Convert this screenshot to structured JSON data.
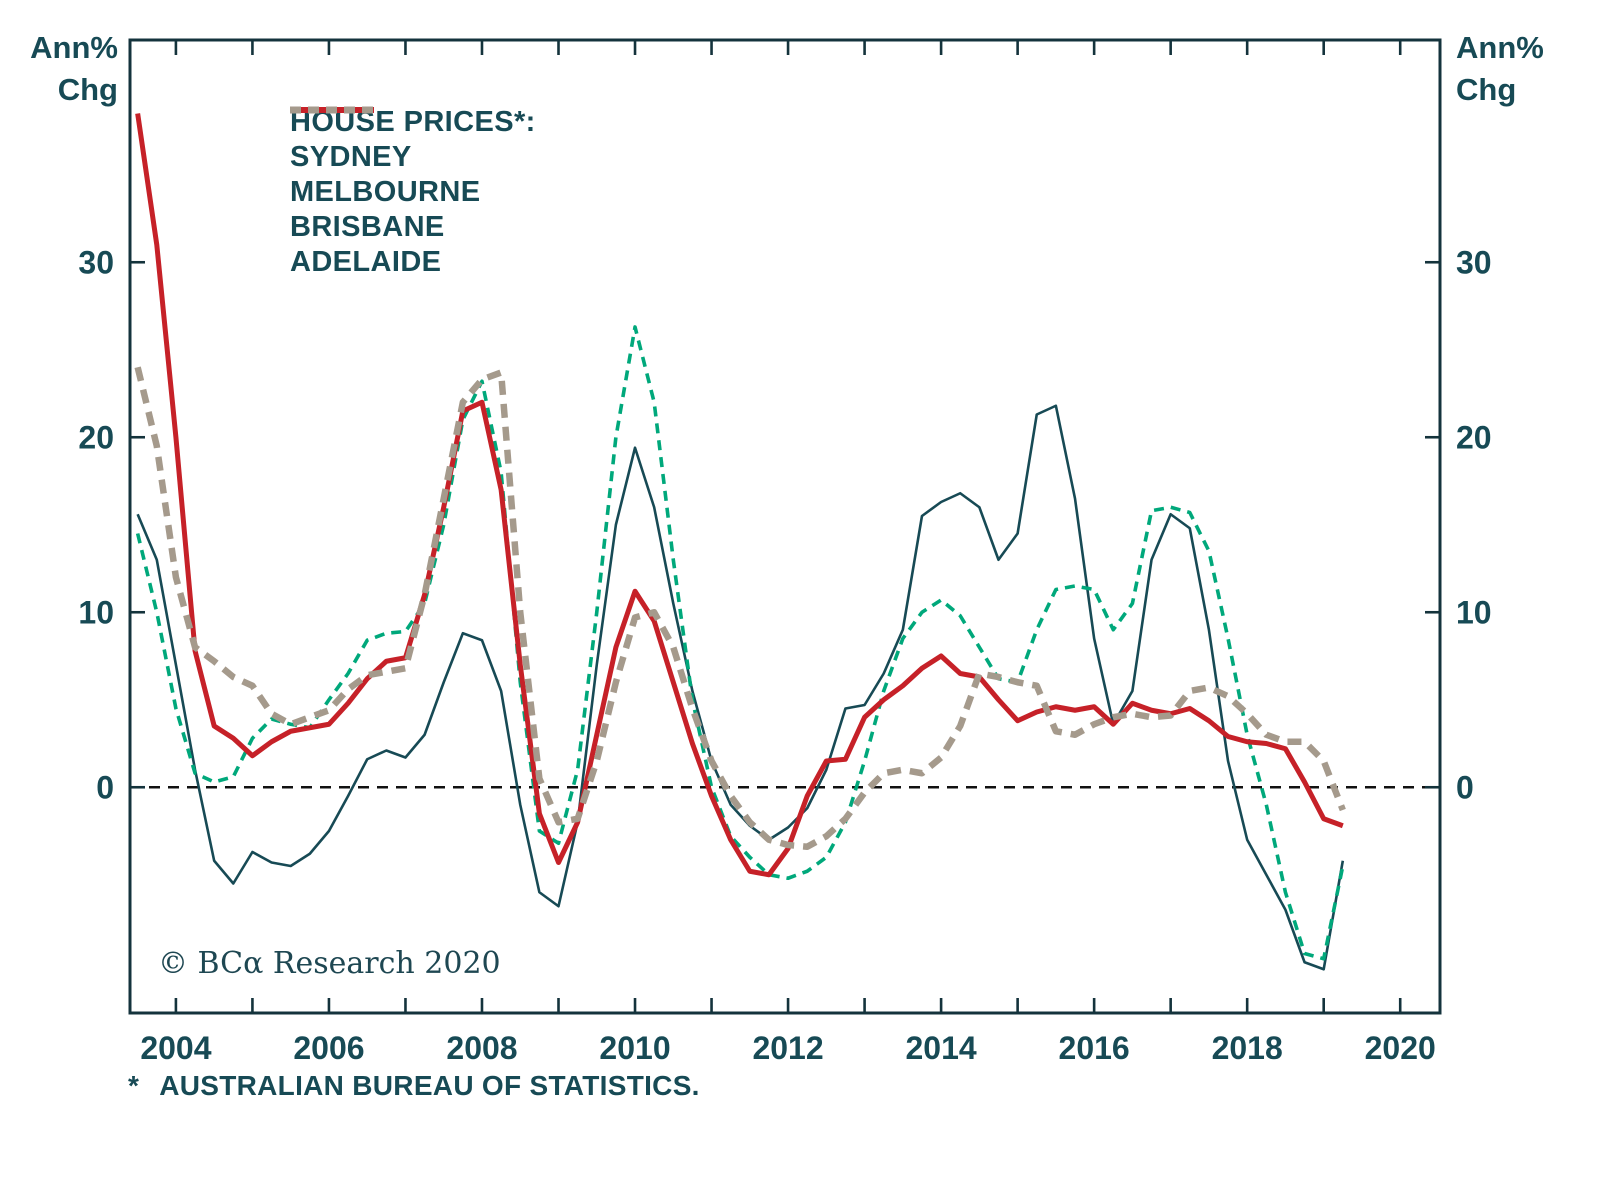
{
  "labels": {
    "ann_pct": "Ann%",
    "chg": "Chg"
  },
  "legend": {
    "title": "HOUSE PRICES*:"
  },
  "copyright": "© BCα Research 2020",
  "footnote": {
    "star": "*",
    "text": "AUSTRALIAN BUREAU OF STATISTICS."
  },
  "colors": {
    "text": "#174a55",
    "frame": "#14333c",
    "zero_line": "#111111"
  },
  "chart_data": {
    "type": "line",
    "title": "HOUSE PRICES*: annual % change, Australian capital cities",
    "x_start": 2003.5,
    "x_step": 0.25,
    "x_axis": {
      "min": 2003.4,
      "max": 2020.52,
      "tick_years": [
        2004,
        2005,
        2006,
        2007,
        2008,
        2009,
        2010,
        2011,
        2012,
        2013,
        2014,
        2015,
        2016,
        2017,
        2018,
        2019,
        2020
      ],
      "label_years": [
        2004,
        2006,
        2008,
        2010,
        2012,
        2014,
        2016,
        2018,
        2020
      ]
    },
    "y_axis": {
      "min": -12.9,
      "max": 42.7,
      "ticks": [
        0,
        10,
        20,
        30
      ],
      "label": "Ann% Chg"
    },
    "zero_line": true,
    "grid": false,
    "legend_position": "top-left-inside",
    "series": [
      {
        "name": "SYDNEY",
        "color": "#174a55",
        "width": 2.6,
        "dash": null,
        "values": [
          15.6,
          13.0,
          7.0,
          1.0,
          -4.2,
          -5.5,
          -3.7,
          -4.3,
          -4.5,
          -3.8,
          -2.5,
          -0.5,
          1.6,
          2.1,
          1.7,
          3.0,
          6.0,
          8.8,
          8.4,
          5.5,
          -1.0,
          -6.0,
          -6.8,
          -2.0,
          7.0,
          15.0,
          19.4,
          16.0,
          10.5,
          5.5,
          1.5,
          -1.0,
          -2.2,
          -3.0,
          -2.3,
          -1.2,
          1.0,
          4.5,
          4.7,
          6.5,
          9.0,
          15.5,
          16.3,
          16.8,
          16.0,
          13.0,
          14.5,
          21.3,
          21.8,
          16.5,
          8.5,
          3.6,
          5.5,
          13.0,
          15.6,
          14.8,
          9.0,
          1.5,
          -3.0,
          -5.0,
          -7.0,
          -10.0,
          -10.4,
          -4.2
        ]
      },
      {
        "name": "MELBOURNE",
        "color": "#00a87b",
        "width": 3.6,
        "dash": "10 7",
        "values": [
          14.5,
          10.0,
          4.5,
          0.8,
          0.3,
          0.6,
          2.8,
          3.9,
          3.6,
          3.4,
          5.0,
          6.5,
          8.4,
          8.8,
          8.9,
          10.5,
          15.0,
          21.0,
          23.2,
          18.0,
          6.0,
          -2.5,
          -3.2,
          1.0,
          10.0,
          20.0,
          26.3,
          22.0,
          13.0,
          5.0,
          0.0,
          -2.8,
          -4.0,
          -5.0,
          -5.2,
          -4.8,
          -4.0,
          -2.0,
          1.5,
          5.5,
          8.5,
          10.0,
          10.7,
          9.8,
          8.0,
          6.2,
          6.0,
          9.0,
          11.3,
          11.5,
          11.3,
          9.0,
          10.5,
          15.8,
          16.0,
          15.7,
          13.5,
          8.5,
          3.0,
          -1.0,
          -6.0,
          -9.5,
          -9.8,
          -4.5
        ]
      },
      {
        "name": "BRISBANE",
        "color": "#c62128",
        "width": 5,
        "dash": null,
        "values": [
          38.5,
          31.0,
          20.0,
          7.8,
          3.5,
          2.8,
          1.8,
          2.6,
          3.2,
          3.4,
          3.6,
          4.8,
          6.2,
          7.2,
          7.4,
          11.0,
          16.0,
          21.5,
          22.0,
          17.0,
          7.0,
          -1.5,
          -4.3,
          -2.0,
          3.0,
          8.0,
          11.2,
          9.5,
          6.0,
          2.5,
          -0.5,
          -3.0,
          -4.8,
          -5.0,
          -3.5,
          -0.5,
          1.5,
          1.6,
          4.0,
          5.0,
          5.8,
          6.8,
          7.5,
          6.5,
          6.3,
          5.0,
          3.8,
          4.3,
          4.6,
          4.4,
          4.6,
          3.6,
          4.8,
          4.4,
          4.2,
          4.5,
          3.8,
          2.9,
          2.6,
          2.5,
          2.2,
          0.3,
          -1.8,
          -2.2
        ]
      },
      {
        "name": "ADELAIDE",
        "color": "#a59a8c",
        "width": 6.5,
        "dash": "14 9",
        "values": [
          24.0,
          19.5,
          12.0,
          8.0,
          7.2,
          6.3,
          5.8,
          4.2,
          3.6,
          4.0,
          4.4,
          5.6,
          6.4,
          6.6,
          6.8,
          11.0,
          16.5,
          22.0,
          23.3,
          23.7,
          10.0,
          0.5,
          -2.0,
          -1.8,
          1.5,
          6.0,
          9.7,
          10.0,
          8.0,
          4.5,
          1.5,
          -0.5,
          -2.0,
          -3.0,
          -3.3,
          -3.4,
          -2.8,
          -1.8,
          -0.3,
          0.8,
          1.0,
          0.8,
          1.7,
          3.5,
          6.5,
          6.3,
          6.0,
          5.8,
          3.2,
          3.0,
          3.6,
          4.0,
          4.2,
          4.0,
          4.1,
          5.5,
          5.7,
          5.2,
          4.2,
          3.0,
          2.6,
          2.6,
          1.5,
          -1.3
        ]
      }
    ]
  }
}
